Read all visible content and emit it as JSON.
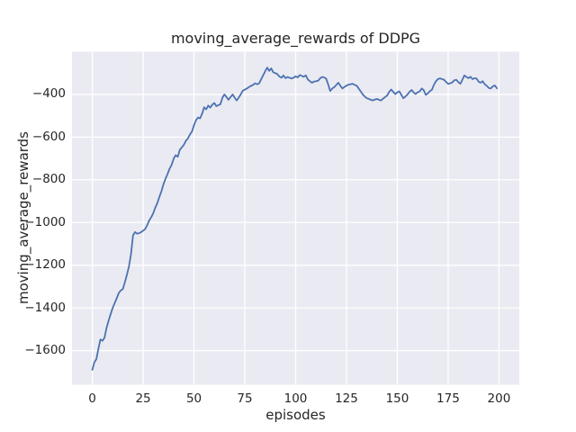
{
  "chart_data": {
    "type": "line",
    "title": "moving_average_rewards of DDPG",
    "xlabel": "episodes",
    "ylabel": "moving_average_rewards",
    "xlim": [
      -10,
      210
    ],
    "ylim": [
      -1760,
      -200
    ],
    "grid": true,
    "legend": "none",
    "x_ticks": [
      {
        "value": 0,
        "label": "0"
      },
      {
        "value": 25,
        "label": "25"
      },
      {
        "value": 50,
        "label": "50"
      },
      {
        "value": 75,
        "label": "75"
      },
      {
        "value": 100,
        "label": "100"
      },
      {
        "value": 125,
        "label": "125"
      },
      {
        "value": 150,
        "label": "150"
      },
      {
        "value": 175,
        "label": "175"
      },
      {
        "value": 200,
        "label": "200"
      }
    ],
    "y_ticks": [
      {
        "value": -400,
        "label": "−400"
      },
      {
        "value": -600,
        "label": "−600"
      },
      {
        "value": -800,
        "label": "−800"
      },
      {
        "value": -1000,
        "label": "−1000"
      },
      {
        "value": -1200,
        "label": "−1200"
      },
      {
        "value": -1400,
        "label": "−1400"
      },
      {
        "value": -1600,
        "label": "−1600"
      }
    ],
    "colors": {
      "figure_bg": "#ffffff",
      "plot_bg": "#eaeaf2",
      "grid": "#ffffff",
      "line": "#4c72b0",
      "text": "#262626"
    },
    "series": [
      {
        "name": "moving_average_rewards",
        "x_start": 0,
        "x_step": 1,
        "values": [
          -1690,
          -1655,
          -1640,
          -1590,
          -1548,
          -1554,
          -1540,
          -1493,
          -1460,
          -1430,
          -1400,
          -1378,
          -1355,
          -1330,
          -1318,
          -1312,
          -1280,
          -1245,
          -1205,
          -1150,
          -1060,
          -1045,
          -1052,
          -1050,
          -1045,
          -1038,
          -1030,
          -1012,
          -990,
          -975,
          -955,
          -930,
          -908,
          -880,
          -853,
          -820,
          -795,
          -772,
          -748,
          -730,
          -700,
          -685,
          -692,
          -660,
          -648,
          -636,
          -618,
          -606,
          -588,
          -574,
          -545,
          -520,
          -508,
          -512,
          -490,
          -460,
          -470,
          -452,
          -462,
          -448,
          -440,
          -455,
          -450,
          -446,
          -415,
          -400,
          -412,
          -425,
          -412,
          -400,
          -415,
          -428,
          -415,
          -400,
          -382,
          -378,
          -372,
          -366,
          -360,
          -356,
          -348,
          -352,
          -349,
          -330,
          -310,
          -292,
          -274,
          -290,
          -278,
          -296,
          -300,
          -305,
          -316,
          -322,
          -311,
          -324,
          -318,
          -322,
          -325,
          -322,
          -315,
          -320,
          -309,
          -313,
          -317,
          -311,
          -330,
          -338,
          -345,
          -340,
          -338,
          -336,
          -325,
          -318,
          -320,
          -326,
          -352,
          -384,
          -372,
          -366,
          -355,
          -345,
          -360,
          -372,
          -365,
          -359,
          -354,
          -352,
          -350,
          -355,
          -359,
          -372,
          -386,
          -400,
          -410,
          -418,
          -421,
          -425,
          -428,
          -424,
          -421,
          -425,
          -428,
          -420,
          -412,
          -405,
          -388,
          -377,
          -388,
          -398,
          -390,
          -386,
          -402,
          -418,
          -410,
          -400,
          -388,
          -379,
          -390,
          -398,
          -390,
          -386,
          -372,
          -380,
          -402,
          -395,
          -385,
          -378,
          -355,
          -338,
          -328,
          -325,
          -328,
          -331,
          -342,
          -350,
          -348,
          -344,
          -334,
          -331,
          -342,
          -350,
          -332,
          -311,
          -318,
          -324,
          -317,
          -328,
          -324,
          -326,
          -340,
          -345,
          -338,
          -352,
          -360,
          -370,
          -372,
          -362,
          -358,
          -371
        ]
      }
    ]
  }
}
